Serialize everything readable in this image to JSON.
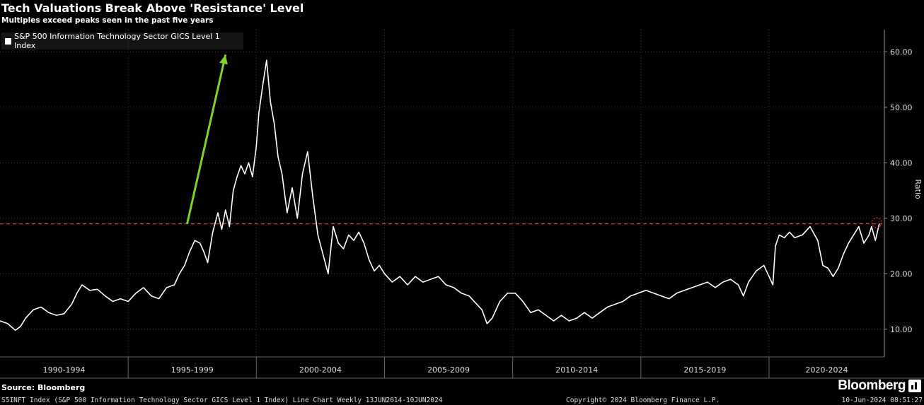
{
  "header": {
    "title": "Tech Valuations Break Above 'Resistance' Level",
    "subtitle": "Multiples exceed peaks seen in the past five years"
  },
  "legend": {
    "label": "S&P 500 Information Technology Sector GICS Level 1 Index"
  },
  "footer": {
    "source": "Source: Bloomberg",
    "description": "S5INFT Index (S&P 500 Information Technology Sector GICS Level 1 Index) Line Chart  Weekly 13JUN2014-10JUN2024",
    "copyright": "Copyright© 2024 Bloomberg Finance L.P.",
    "timestamp": "10-Jun-2024 08:51:27",
    "brand": "Bloomberg"
  },
  "chart_data": {
    "type": "line",
    "ylabel": "Ratio",
    "ylim": [
      5,
      64
    ],
    "yticks": [
      10,
      20,
      30,
      40,
      50,
      60
    ],
    "ytick_labels": [
      "10.00",
      "20.00",
      "30.00",
      "40.00",
      "50.00",
      "60.00"
    ],
    "xlim": [
      1990,
      2024.5
    ],
    "period_labels": [
      "1990-1994",
      "1995-1999",
      "2000-2004",
      "2005-2009",
      "2010-2014",
      "2015-2019",
      "2020-2024"
    ],
    "period_boundaries": [
      1995,
      2000,
      2005,
      2010,
      2015,
      2020
    ],
    "resistance_level": 29,
    "annotation_arrow": {
      "from": [
        1997.3,
        29
      ],
      "to": [
        1998.8,
        59.5
      ]
    },
    "highlight_point": [
      2024.2,
      29.2
    ],
    "colors": {
      "line": "#ffffff",
      "arrow": "#7fd321",
      "resistance": "#e03030",
      "grid": "#3a3a3a"
    },
    "series": [
      {
        "x": [
          1990.0,
          1990.3,
          1990.6,
          1990.8,
          1991.0,
          1991.3,
          1991.6,
          1991.9,
          1992.2,
          1992.5,
          1992.8,
          1993.0,
          1993.2,
          1993.5,
          1993.8,
          1994.1,
          1994.4,
          1994.7,
          1995.0,
          1995.3,
          1995.6,
          1995.9,
          1996.2,
          1996.5,
          1996.8,
          1997.0,
          1997.2,
          1997.4,
          1997.6,
          1997.8,
          1997.95,
          1998.1,
          1998.3,
          1998.5,
          1998.65,
          1998.8,
          1998.95,
          1999.1,
          1999.25,
          1999.4,
          1999.55,
          1999.7,
          1999.85,
          2000.0,
          2000.1,
          2000.25,
          2000.4,
          2000.55,
          2000.7,
          2000.85,
          2001.0,
          2001.2,
          2001.4,
          2001.6,
          2001.8,
          2002.0,
          2002.2,
          2002.4,
          2002.6,
          2002.8,
          2003.0,
          2003.2,
          2003.4,
          2003.6,
          2003.8,
          2004.0,
          2004.2,
          2004.4,
          2004.6,
          2004.8,
          2005.0,
          2005.3,
          2005.6,
          2005.9,
          2006.2,
          2006.5,
          2006.8,
          2007.1,
          2007.4,
          2007.7,
          2008.0,
          2008.3,
          2008.6,
          2008.8,
          2009.0,
          2009.2,
          2009.5,
          2009.8,
          2010.1,
          2010.4,
          2010.7,
          2011.0,
          2011.3,
          2011.6,
          2011.9,
          2012.2,
          2012.5,
          2012.8,
          2013.1,
          2013.4,
          2013.7,
          2014.0,
          2014.3,
          2014.6,
          2014.9,
          2015.2,
          2015.5,
          2015.8,
          2016.1,
          2016.4,
          2016.7,
          2017.0,
          2017.3,
          2017.6,
          2017.9,
          2018.2,
          2018.5,
          2018.8,
          2019.0,
          2019.2,
          2019.5,
          2019.8,
          2020.0,
          2020.15,
          2020.25,
          2020.4,
          2020.6,
          2020.8,
          2021.0,
          2021.3,
          2021.6,
          2021.9,
          2022.1,
          2022.3,
          2022.5,
          2022.7,
          2022.9,
          2023.1,
          2023.3,
          2023.5,
          2023.7,
          2023.9,
          2024.0,
          2024.15,
          2024.3
        ],
        "y": [
          11.5,
          11.0,
          9.8,
          10.5,
          12.0,
          13.5,
          14.0,
          13.0,
          12.5,
          12.8,
          14.5,
          16.5,
          18.0,
          17.0,
          17.2,
          16.0,
          15.0,
          15.5,
          15.0,
          16.5,
          17.5,
          16.0,
          15.5,
          17.5,
          18.0,
          20.0,
          21.5,
          24.0,
          26.0,
          25.5,
          24.0,
          22.0,
          27.5,
          31.0,
          28.0,
          31.5,
          28.5,
          35.0,
          37.5,
          39.5,
          38.0,
          40.0,
          37.5,
          43.0,
          49.0,
          54.0,
          58.5,
          51.0,
          47.0,
          41.0,
          38.0,
          31.0,
          35.5,
          30.0,
          38.0,
          42.0,
          34.0,
          27.0,
          23.5,
          20.0,
          28.5,
          25.5,
          24.5,
          27.0,
          26.0,
          27.5,
          25.5,
          22.5,
          20.5,
          21.5,
          20.0,
          18.5,
          19.5,
          18.0,
          19.5,
          18.5,
          19.0,
          19.5,
          18.0,
          17.5,
          16.5,
          16.0,
          14.5,
          13.5,
          11.0,
          12.0,
          15.0,
          16.5,
          16.5,
          15.0,
          13.0,
          13.5,
          12.5,
          11.5,
          12.5,
          11.5,
          12.0,
          13.0,
          12.0,
          13.0,
          14.0,
          14.5,
          15.0,
          16.0,
          16.5,
          17.0,
          16.5,
          16.0,
          15.5,
          16.5,
          17.0,
          17.5,
          18.0,
          18.5,
          17.5,
          18.5,
          19.0,
          18.0,
          16.0,
          18.5,
          20.5,
          21.5,
          19.5,
          18.0,
          25.0,
          27.0,
          26.5,
          27.5,
          26.5,
          27.0,
          28.5,
          26.0,
          21.5,
          21.0,
          19.5,
          21.0,
          23.5,
          25.5,
          27.0,
          28.5,
          25.5,
          27.0,
          28.5,
          26.0,
          29.0
        ]
      }
    ]
  }
}
